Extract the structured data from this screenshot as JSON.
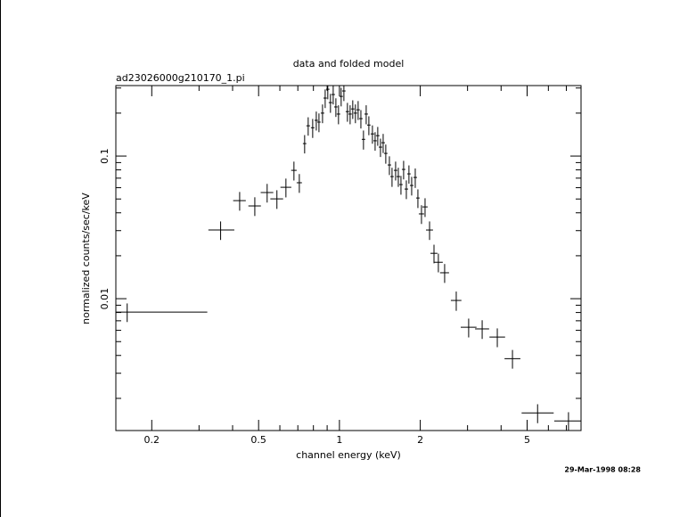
{
  "chart_data": {
    "type": "errorbar",
    "title": "data and folded model",
    "subtitle": "ad23026000g210170_1.pi",
    "x_label": "channel energy (keV)",
    "y_label": "normalized counts/sec/keV",
    "annotation": "29-Mar-1998 08:28",
    "xscale": "log",
    "yscale": "log",
    "color": "#000000",
    "xlim": [
      0.147,
      7.94
    ],
    "ylim": [
      0.00119,
      0.312
    ],
    "xticks": [
      0.2,
      0.5,
      1,
      2,
      5
    ],
    "yticks": [
      0.01,
      0.1
    ],
    "x_minor_ticks": [
      0.3,
      0.4,
      0.6,
      0.7,
      0.8,
      0.9,
      3,
      4,
      6,
      7
    ],
    "y_minor_ticks": [
      0.002,
      0.003,
      0.004,
      0.005,
      0.006,
      0.007,
      0.008,
      0.009,
      0.02,
      0.03,
      0.04,
      0.05,
      0.06,
      0.07,
      0.08,
      0.09,
      0.2,
      0.3
    ],
    "x": [
      0.162,
      0.361,
      0.425,
      0.484,
      0.538,
      0.585,
      0.632,
      0.677,
      0.709,
      0.742,
      0.765,
      0.795,
      0.82,
      0.839,
      0.865,
      0.885,
      0.905,
      0.926,
      0.948,
      0.97,
      0.992,
      1.015,
      1.039,
      1.071,
      1.096,
      1.121,
      1.147,
      1.174,
      1.202,
      1.229,
      1.258,
      1.287,
      1.327,
      1.358,
      1.389,
      1.422,
      1.455,
      1.488,
      1.535,
      1.57,
      1.619,
      1.657,
      1.695,
      1.734,
      1.775,
      1.815,
      1.858,
      1.916,
      1.96,
      2.021,
      2.084,
      2.166,
      2.25,
      2.336,
      2.465,
      2.723,
      3.029,
      3.401,
      3.872,
      4.41,
      5.47,
      7.13
    ],
    "x_min": [
      0.147,
      0.325,
      0.402,
      0.458,
      0.509,
      0.553,
      0.603,
      0.661,
      0.693,
      0.731,
      0.753,
      0.783,
      0.808,
      0.827,
      0.852,
      0.872,
      0.892,
      0.912,
      0.934,
      0.956,
      0.977,
      1.0,
      1.024,
      1.055,
      1.08,
      1.104,
      1.13,
      1.157,
      1.184,
      1.211,
      1.239,
      1.268,
      1.307,
      1.338,
      1.368,
      1.401,
      1.433,
      1.466,
      1.512,
      1.547,
      1.595,
      1.632,
      1.67,
      1.708,
      1.748,
      1.788,
      1.83,
      1.887,
      1.931,
      1.975,
      2.037,
      2.101,
      2.183,
      2.246,
      2.37,
      2.6,
      2.83,
      3.2,
      3.62,
      4.12,
      4.77,
      6.31
    ],
    "x_max": [
      0.322,
      0.406,
      0.448,
      0.51,
      0.567,
      0.617,
      0.662,
      0.693,
      0.725,
      0.753,
      0.777,
      0.807,
      0.832,
      0.851,
      0.878,
      0.898,
      0.918,
      0.94,
      0.962,
      0.984,
      1.007,
      1.03,
      1.054,
      1.087,
      1.112,
      1.138,
      1.164,
      1.191,
      1.22,
      1.247,
      1.277,
      1.306,
      1.347,
      1.378,
      1.41,
      1.443,
      1.477,
      1.51,
      1.558,
      1.593,
      1.643,
      1.682,
      1.72,
      1.76,
      1.802,
      1.842,
      1.886,
      1.945,
      1.989,
      2.067,
      2.131,
      2.231,
      2.317,
      2.426,
      2.56,
      2.846,
      3.24,
      3.61,
      4.14,
      4.72,
      6.28,
      7.94
    ],
    "y": [
      0.00806,
      0.0303,
      0.0487,
      0.0447,
      0.0555,
      0.0501,
      0.0604,
      0.0794,
      0.065,
      0.1223,
      0.163,
      0.158,
      0.178,
      0.173,
      0.2,
      0.255,
      0.294,
      0.237,
      0.27,
      0.221,
      0.197,
      0.262,
      0.286,
      0.205,
      0.197,
      0.214,
      0.2,
      0.211,
      0.183,
      0.131,
      0.197,
      0.165,
      0.143,
      0.128,
      0.139,
      0.1155,
      0.124,
      0.1044,
      0.0866,
      0.0718,
      0.0794,
      0.0718,
      0.0631,
      0.0806,
      0.0587,
      0.075,
      0.0622,
      0.0708,
      0.0508,
      0.0393,
      0.044,
      0.0303,
      0.0208,
      0.018,
      0.0152,
      0.00972,
      0.0063,
      0.00614,
      0.00538,
      0.0038,
      0.00158,
      0.00139
    ],
    "y_err": [
      0.0012,
      0.0045,
      0.0073,
      0.0067,
      0.0083,
      0.0075,
      0.0091,
      0.012,
      0.0098,
      0.018,
      0.024,
      0.024,
      0.027,
      0.026,
      0.03,
      0.038,
      0.044,
      0.036,
      0.04,
      0.033,
      0.03,
      0.039,
      0.043,
      0.031,
      0.03,
      0.032,
      0.03,
      0.032,
      0.027,
      0.02,
      0.03,
      0.025,
      0.021,
      0.019,
      0.021,
      0.017,
      0.019,
      0.016,
      0.013,
      0.011,
      0.012,
      0.011,
      0.0095,
      0.012,
      0.0088,
      0.011,
      0.0093,
      0.011,
      0.0076,
      0.0059,
      0.0066,
      0.0045,
      0.0031,
      0.0027,
      0.0023,
      0.0015,
      0.00095,
      0.00092,
      0.00081,
      0.00057,
      0.00024,
      0.00021
    ]
  }
}
